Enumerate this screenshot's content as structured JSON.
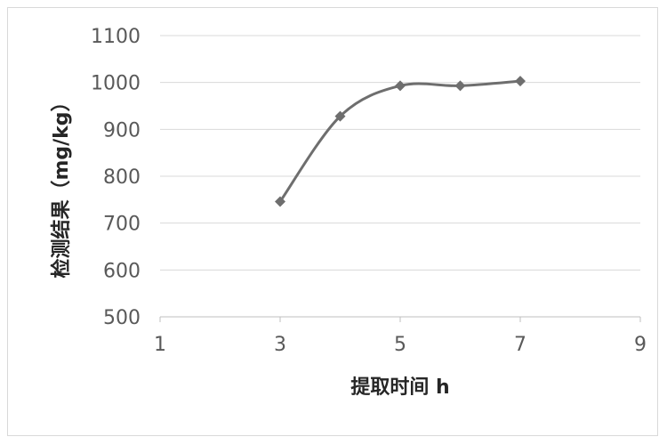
{
  "chart_data": {
    "type": "line",
    "title": "",
    "xlabel": "提取时间 h",
    "ylabel": "检测结果（mg/kg）",
    "xlim": [
      1,
      9
    ],
    "ylim": [
      500,
      1100
    ],
    "xticks": [
      1,
      3,
      5,
      7,
      9
    ],
    "yticks": [
      500,
      600,
      700,
      800,
      900,
      1000,
      1100
    ],
    "grid": "horizontal",
    "legend": "none",
    "line_style": "smooth",
    "marker": "diamond",
    "series_color": "#6e6e6e",
    "series": [
      {
        "x": [
          3,
          4,
          5,
          6,
          7
        ],
        "values": [
          746,
          928,
          993,
          993,
          1003
        ]
      }
    ]
  }
}
